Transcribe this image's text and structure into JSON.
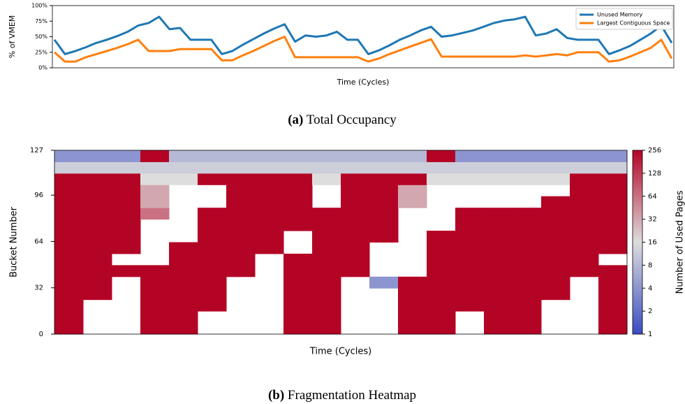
{
  "chart_data": [
    {
      "type": "line",
      "ylabel": "% of VMEM",
      "xlabel": "Time (Cycles)",
      "caption_label": "(a)",
      "caption": "Total Occupancy",
      "ylim": [
        0,
        100
      ],
      "yticks": [
        {
          "value": 0,
          "label": "0%"
        },
        {
          "value": 25,
          "label": "25%"
        },
        {
          "value": 50,
          "label": "50%"
        },
        {
          "value": 75,
          "label": "75%"
        },
        {
          "value": 100,
          "label": "100%"
        }
      ],
      "legend": "upper right",
      "series": [
        {
          "name": "Unused Memory",
          "color": "#1f77b4",
          "values": [
            45,
            22,
            27,
            33,
            40,
            45,
            51,
            58,
            68,
            72,
            82,
            62,
            64,
            45,
            45,
            45,
            22,
            27,
            37,
            46,
            55,
            63,
            70,
            42,
            52,
            50,
            52,
            58,
            45,
            45,
            22,
            28,
            36,
            45,
            52,
            60,
            66,
            50,
            52,
            56,
            60,
            66,
            72,
            76,
            78,
            82,
            52,
            55,
            62,
            48,
            45,
            45,
            45,
            22,
            28,
            35,
            45,
            55,
            68,
            40
          ]
        },
        {
          "name": "Largest Contiguous Space",
          "color": "#ff7f0e",
          "values": [
            25,
            10,
            10,
            17,
            22,
            27,
            32,
            38,
            45,
            27,
            27,
            27,
            30,
            30,
            30,
            30,
            12,
            12,
            20,
            27,
            35,
            43,
            50,
            17,
            17,
            17,
            17,
            17,
            17,
            17,
            10,
            15,
            22,
            28,
            34,
            40,
            46,
            18,
            18,
            18,
            18,
            18,
            18,
            18,
            18,
            20,
            18,
            20,
            22,
            20,
            25,
            25,
            25,
            10,
            12,
            18,
            25,
            32,
            45,
            15
          ]
        }
      ]
    },
    {
      "type": "heatmap",
      "ylabel": "Bucket Number",
      "xlabel": "Time (Cycles)",
      "caption_label": "(b)",
      "caption": "Fragmentation Heatmap",
      "ylim": [
        0,
        127
      ],
      "yticks": [
        0,
        32,
        64,
        96,
        127
      ],
      "colorbar_label": "Number of Used Pages",
      "color_scale": "log",
      "clim": [
        1,
        256
      ],
      "cticks": [
        1,
        2,
        4,
        8,
        16,
        32,
        64,
        128,
        256
      ],
      "colors": [
        "#3b4cc0",
        "#dddddd",
        "#b40426"
      ],
      "z": [
        [
          256,
          null,
          null,
          256,
          256,
          null,
          null,
          null,
          256,
          256,
          null,
          null,
          256,
          256,
          null,
          256,
          256,
          null,
          null,
          256
        ],
        [
          256,
          null,
          null,
          256,
          256,
          null,
          null,
          null,
          256,
          256,
          null,
          null,
          256,
          256,
          null,
          256,
          256,
          null,
          null,
          256
        ],
        [
          256,
          null,
          null,
          256,
          256,
          256,
          null,
          null,
          256,
          256,
          null,
          null,
          256,
          256,
          256,
          256,
          256,
          null,
          null,
          256
        ],
        [
          256,
          256,
          null,
          256,
          256,
          256,
          null,
          null,
          256,
          256,
          null,
          null,
          256,
          256,
          256,
          256,
          256,
          256,
          null,
          256
        ],
        [
          256,
          256,
          null,
          256,
          256,
          256,
          null,
          null,
          256,
          256,
          null,
          4,
          256,
          256,
          256,
          256,
          256,
          256,
          null,
          256
        ],
        [
          256,
          256,
          256,
          256,
          256,
          256,
          256,
          null,
          256,
          256,
          256,
          null,
          null,
          256,
          256,
          256,
          256,
          256,
          256,
          256
        ],
        [
          256,
          256,
          null,
          null,
          256,
          256,
          256,
          null,
          256,
          256,
          256,
          null,
          null,
          256,
          256,
          256,
          256,
          256,
          256,
          null
        ],
        [
          256,
          256,
          256,
          null,
          256,
          256,
          256,
          256,
          null,
          256,
          256,
          null,
          null,
          256,
          256,
          256,
          256,
          256,
          256,
          256
        ],
        [
          256,
          256,
          256,
          null,
          null,
          256,
          256,
          256,
          null,
          256,
          256,
          256,
          null,
          256,
          256,
          256,
          256,
          256,
          256,
          256
        ],
        [
          256,
          256,
          256,
          null,
          null,
          256,
          256,
          256,
          256,
          256,
          256,
          256,
          null,
          null,
          256,
          256,
          256,
          256,
          256,
          256
        ],
        [
          256,
          256,
          256,
          64,
          null,
          256,
          256,
          256,
          256,
          256,
          256,
          256,
          null,
          null,
          256,
          256,
          256,
          256,
          256,
          256
        ],
        [
          256,
          256,
          256,
          32,
          null,
          null,
          256,
          256,
          256,
          null,
          256,
          256,
          32,
          null,
          null,
          null,
          null,
          256,
          256,
          256
        ],
        [
          256,
          256,
          256,
          32,
          null,
          null,
          256,
          256,
          256,
          null,
          256,
          256,
          32,
          null,
          null,
          null,
          null,
          null,
          256,
          256
        ],
        [
          256,
          256,
          256,
          16,
          16,
          256,
          256,
          256,
          256,
          16,
          256,
          256,
          256,
          16,
          16,
          16,
          16,
          16,
          256,
          256
        ],
        [
          12,
          12,
          12,
          12,
          12,
          12,
          12,
          12,
          12,
          12,
          12,
          12,
          12,
          12,
          12,
          12,
          12,
          12,
          12,
          12
        ],
        [
          4,
          4,
          4,
          256,
          8,
          8,
          8,
          8,
          8,
          8,
          8,
          8,
          8,
          256,
          4,
          4,
          4,
          4,
          4,
          4
        ]
      ]
    }
  ]
}
